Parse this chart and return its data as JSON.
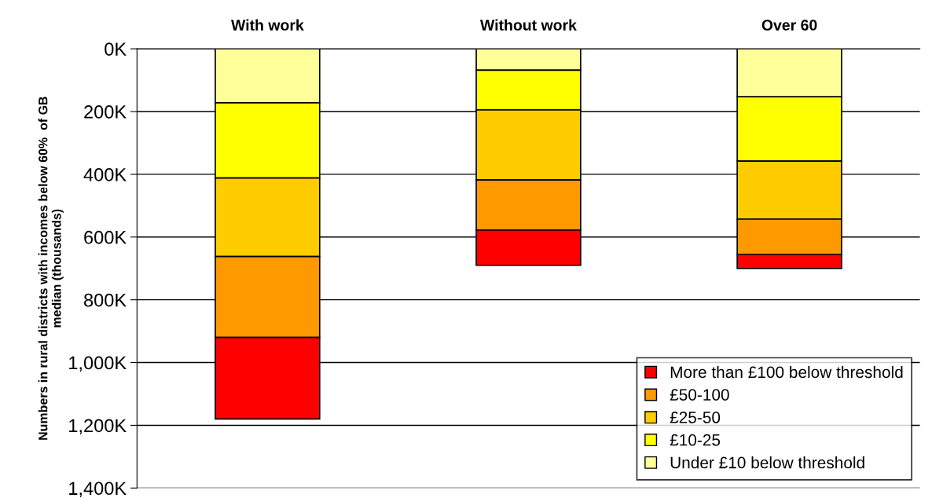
{
  "chart_data": {
    "type": "bar",
    "stacked": true,
    "categories": [
      "With work",
      "Without work",
      "Over 60"
    ],
    "ylabel": "Numbers in rural districts with incomes below 60%  of GB\nmedian (thousands)",
    "series": [
      {
        "name": "Under £10 below threshold",
        "color": "#ffff99",
        "values": [
          172,
          68,
          153
        ]
      },
      {
        "name": "£10-25",
        "color": "#ffff00",
        "values": [
          240,
          127,
          205
        ]
      },
      {
        "name": "£25-50",
        "color": "#ffcc00",
        "values": [
          250,
          223,
          185
        ]
      },
      {
        "name": "£50-100",
        "color": "#ff9900",
        "values": [
          258,
          160,
          112
        ]
      },
      {
        "name": "More than £100 below threshold",
        "color": "#ff0000",
        "values": [
          260,
          112,
          45
        ]
      }
    ],
    "ylim": [
      1400,
      0
    ],
    "yticks": [
      {
        "value": 0,
        "label": "0K"
      },
      {
        "value": 200,
        "label": "200K"
      },
      {
        "value": 400,
        "label": "400K"
      },
      {
        "value": 600,
        "label": "600K"
      },
      {
        "value": 800,
        "label": "800K"
      },
      {
        "value": 1000,
        "label": "1,000K"
      },
      {
        "value": 1200,
        "label": "1,200K"
      },
      {
        "value": 1400,
        "label": "1,400K"
      }
    ],
    "grid": "y",
    "legend": "bottom right"
  }
}
